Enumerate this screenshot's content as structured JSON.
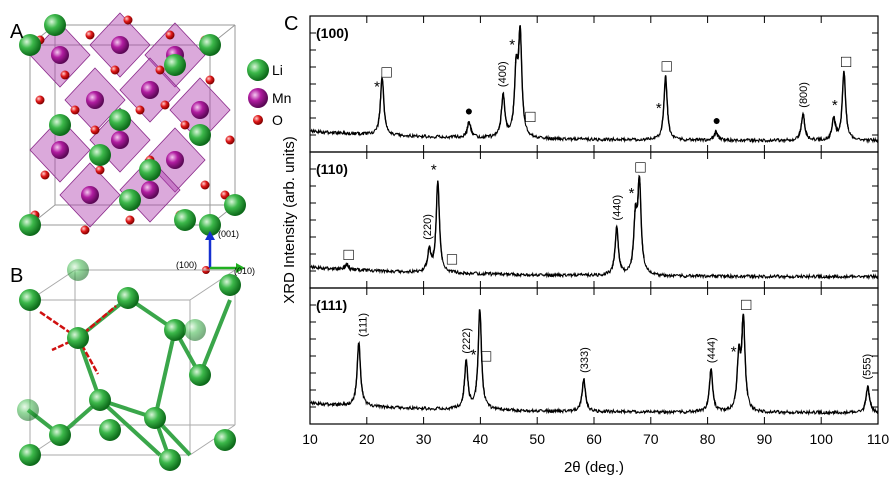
{
  "panel_labels": {
    "a": "A",
    "b": "B",
    "c": "C"
  },
  "legend": [
    "Li",
    "Mn",
    "O"
  ],
  "direction_labels": {
    "up": "(001)",
    "out": "(100)",
    "right": "(010)"
  },
  "y_label": "XRD Intensity (arb. units)",
  "chart_data": [
    {
      "type": "line",
      "title": "(100)",
      "xlim": [
        10,
        110
      ],
      "xticks": [
        10,
        20,
        30,
        40,
        50,
        60,
        70,
        80,
        90,
        100,
        110
      ],
      "ylim": [
        0,
        1.1
      ],
      "color": "#000000",
      "x": [
        22.7,
        38.0,
        44.0,
        46.3,
        47.0,
        72.6,
        81.5,
        96.8,
        102.2,
        104.0
      ],
      "values": [
        0.55,
        0.15,
        0.4,
        0.6,
        0.95,
        0.6,
        0.08,
        0.25,
        0.2,
        0.65
      ],
      "annotations": [
        {
          "text": "*",
          "x": 21.8
        },
        {
          "text": "□",
          "x": 23.5
        },
        {
          "text": "●",
          "x": 38.0
        },
        {
          "text": "(400)",
          "x": 43.8
        },
        {
          "text": "*",
          "x": 45.6
        },
        {
          "text": "□",
          "x": 48.8
        },
        {
          "text": "*",
          "x": 71.4
        },
        {
          "text": "□",
          "x": 72.8
        },
        {
          "text": "●",
          "x": 81.6
        },
        {
          "text": "(800)",
          "x": 96.8
        },
        {
          "text": "*",
          "x": 102.4
        },
        {
          "text": "□",
          "x": 104.4
        }
      ]
    },
    {
      "type": "line",
      "title": "(110)",
      "xlim": [
        10,
        110
      ],
      "xticks": [
        10,
        20,
        30,
        40,
        50,
        60,
        70,
        80,
        90,
        100,
        110
      ],
      "ylim": [
        0,
        1.1
      ],
      "color": "#000000",
      "x": [
        16.5,
        31.0,
        32.5,
        64.0,
        67.3,
        68.0
      ],
      "values": [
        0.05,
        0.2,
        0.85,
        0.45,
        0.5,
        0.85
      ],
      "annotations": [
        {
          "text": "□",
          "x": 16.8
        },
        {
          "text": "(220)",
          "x": 30.6
        },
        {
          "text": "*",
          "x": 31.8
        },
        {
          "text": "□",
          "x": 35.0
        },
        {
          "text": "(440)",
          "x": 64.0
        },
        {
          "text": "*",
          "x": 66.6
        },
        {
          "text": "□",
          "x": 68.2
        }
      ]
    },
    {
      "type": "line",
      "title": "(111)",
      "xlim": [
        10,
        110
      ],
      "xticks": [
        10,
        20,
        30,
        40,
        50,
        60,
        70,
        80,
        90,
        100,
        110
      ],
      "ylim": [
        0,
        1.1
      ],
      "color": "#000000",
      "x": [
        18.6,
        37.5,
        39.9,
        58.2,
        80.6,
        85.5,
        86.3,
        108.2
      ],
      "values": [
        0.6,
        0.45,
        0.95,
        0.3,
        0.4,
        0.5,
        0.85,
        0.25
      ],
      "annotations": [
        {
          "text": "(111)",
          "x": 19.2
        },
        {
          "text": "(222)",
          "x": 37.5
        },
        {
          "text": "*",
          "x": 38.8
        },
        {
          "text": "□",
          "x": 41.0
        },
        {
          "text": "(333)",
          "x": 58.2
        },
        {
          "text": "(444)",
          "x": 80.6
        },
        {
          "text": "*",
          "x": 84.6
        },
        {
          "text": "□",
          "x": 86.8
        },
        {
          "text": "(555)",
          "x": 108.0
        }
      ],
      "xlabel": "2θ (deg.)"
    }
  ]
}
